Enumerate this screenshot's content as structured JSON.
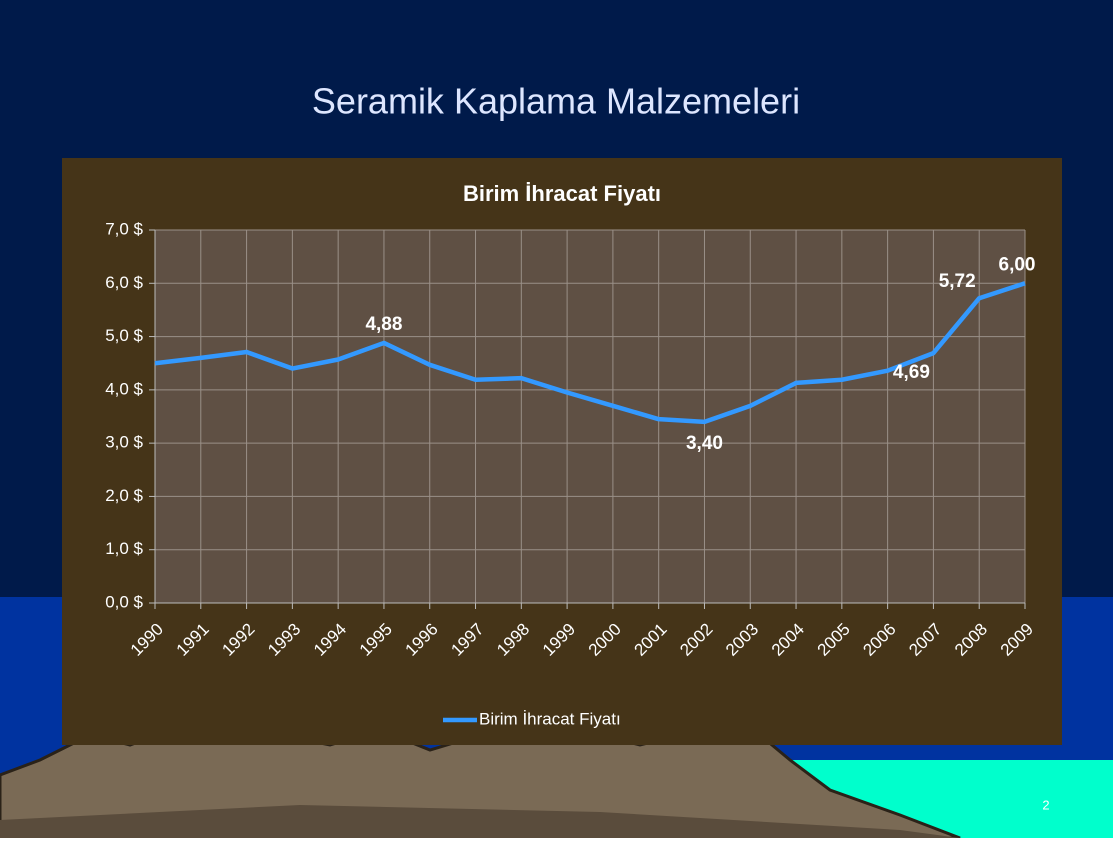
{
  "slide": {
    "title": "Seramik Kaplama Malzemeleri",
    "page_number": "2"
  },
  "chart_data": {
    "type": "line",
    "title": "Birim İhracat Fiyatı",
    "categories": [
      "1990",
      "1991",
      "1992",
      "1993",
      "1994",
      "1995",
      "1996",
      "1997",
      "1998",
      "1999",
      "2000",
      "2001",
      "2002",
      "2003",
      "2004",
      "2005",
      "2006",
      "2007",
      "2008",
      "2009"
    ],
    "series": [
      {
        "name": "Birim İhracat Fiyatı",
        "color": "#3399ff",
        "values": [
          4.5,
          4.6,
          4.71,
          4.4,
          4.57,
          4.88,
          4.47,
          4.19,
          4.22,
          3.95,
          3.7,
          3.45,
          3.4,
          3.7,
          4.13,
          4.19,
          4.36,
          4.69,
          5.72,
          6.0
        ],
        "value_labels": [
          null,
          null,
          null,
          null,
          null,
          "4,88",
          null,
          null,
          null,
          null,
          null,
          null,
          "3,40",
          null,
          null,
          null,
          null,
          "4,69",
          "5,72",
          "6,00"
        ]
      }
    ],
    "ylim": [
      0,
      7
    ],
    "yticks": [
      {
        "value": 0,
        "label": "0,0 $"
      },
      {
        "value": 1,
        "label": "1,0 $"
      },
      {
        "value": 2,
        "label": "2,0 $"
      },
      {
        "value": 3,
        "label": "3,0 $"
      },
      {
        "value": 4,
        "label": "4,0 $"
      },
      {
        "value": 5,
        "label": "5,0 $"
      },
      {
        "value": 6,
        "label": "6,0 $"
      },
      {
        "value": 7,
        "label": "7,0 $"
      }
    ],
    "grid": true,
    "legend": "bottom"
  }
}
